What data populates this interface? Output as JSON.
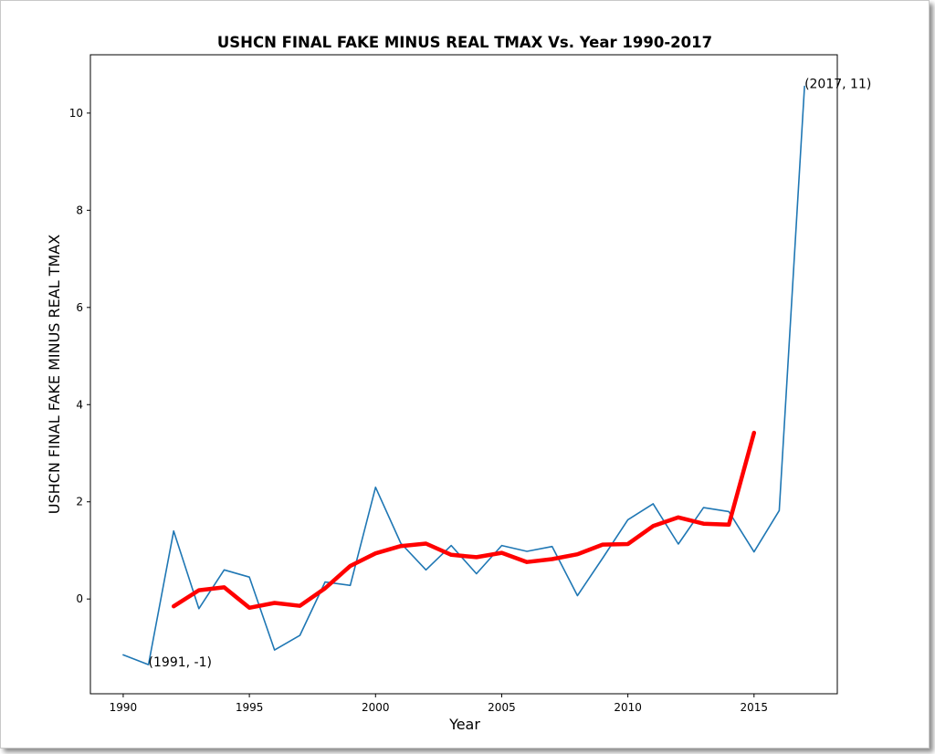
{
  "chart_data": {
    "type": "line",
    "title": "USHCN FINAL FAKE MINUS REAL TMAX Vs. Year 1990-2017",
    "xlabel": "Year",
    "ylabel": "USHCN FINAL FAKE MINUS REAL TMAX",
    "xlim": [
      1988.7,
      2018.3
    ],
    "ylim": [
      -1.95,
      11.2
    ],
    "xticks": [
      1990,
      1995,
      2000,
      2005,
      2010,
      2015
    ],
    "yticks": [
      0,
      2,
      4,
      6,
      8,
      10
    ],
    "grid": false,
    "series": [
      {
        "color": "#1f77b4",
        "x": [
          1990,
          1991,
          1992,
          1993,
          1994,
          1995,
          1996,
          1997,
          1998,
          1999,
          2000,
          2001,
          2002,
          2003,
          2004,
          2005,
          2006,
          2007,
          2008,
          2009,
          2010,
          2011,
          2012,
          2013,
          2014,
          2015,
          2016,
          2017
        ],
        "values": [
          -1.15,
          -1.35,
          1.4,
          -0.2,
          0.6,
          0.45,
          -1.05,
          -0.75,
          0.35,
          0.28,
          2.3,
          1.15,
          0.6,
          1.1,
          0.52,
          1.1,
          0.98,
          1.08,
          0.07,
          0.84,
          1.63,
          1.96,
          1.13,
          1.88,
          1.8,
          0.97,
          1.82,
          10.55
        ]
      },
      {
        "color": "#ff0000",
        "x": [
          1992,
          1993,
          1994,
          1995,
          1996,
          1997,
          1998,
          1999,
          2000,
          2001,
          2002,
          2003,
          2004,
          2005,
          2006,
          2007,
          2008,
          2009,
          2010,
          2011,
          2012,
          2013,
          2014,
          2015
        ],
        "values": [
          -0.15,
          0.18,
          0.24,
          -0.18,
          -0.08,
          -0.14,
          0.22,
          0.68,
          0.94,
          1.09,
          1.14,
          0.91,
          0.86,
          0.95,
          0.76,
          0.82,
          0.92,
          1.12,
          1.13,
          1.5,
          1.68,
          1.55,
          1.53,
          3.42
        ]
      }
    ],
    "annotations": [
      {
        "text": "(1991, -1)",
        "x": 1991,
        "y": -1.35
      },
      {
        "text": "(2017, 11)",
        "x": 2017,
        "y": 10.55
      }
    ]
  }
}
